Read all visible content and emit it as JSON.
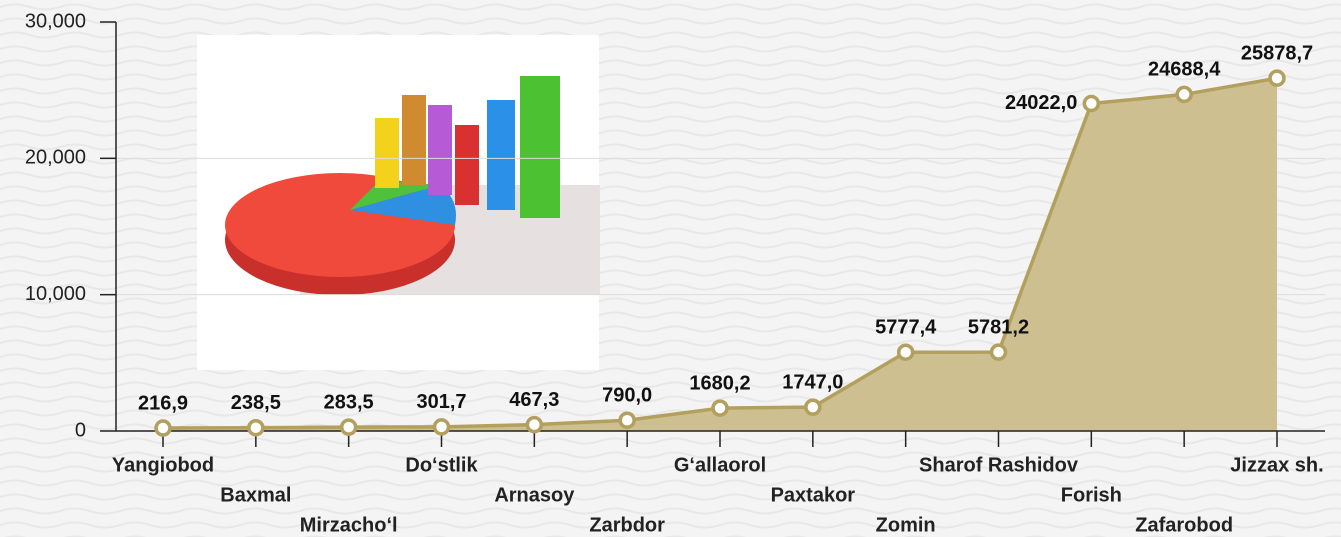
{
  "chart_data": {
    "type": "area",
    "categories": [
      "Yangiobod",
      "Baxmal",
      "Mirzacho‘l",
      "Do‘stlik",
      "Arnasoy",
      "Zarbdor",
      "G‘allaorol",
      "Paxtakor",
      "Zomin",
      "Sharof Rashidov",
      "Forish",
      "Zafarobod",
      "Jizzax sh."
    ],
    "values": [
      216.9,
      238.5,
      283.5,
      301.7,
      467.3,
      790.0,
      1680.2,
      1747.0,
      5777.4,
      5781.2,
      24022.0,
      24688.4,
      25878.7
    ],
    "value_labels": [
      "216,9",
      "238,5",
      "283,5",
      "301,7",
      "467,3",
      "790,0",
      "1680,2",
      "1747,0",
      "5777,4",
      "5781,2",
      "24022,0",
      "24688,4",
      "25878,7"
    ],
    "color": "#b3a05e",
    "fill": "#cdbf90",
    "ylim": [
      0,
      30000
    ],
    "yticks": [
      0,
      {
        "value": 10000,
        "label": "10,000"
      },
      {
        "value": 20000,
        "label": "20,000"
      },
      {
        "value": 30000,
        "label": "30,000"
      }
    ],
    "grid": true
  }
}
